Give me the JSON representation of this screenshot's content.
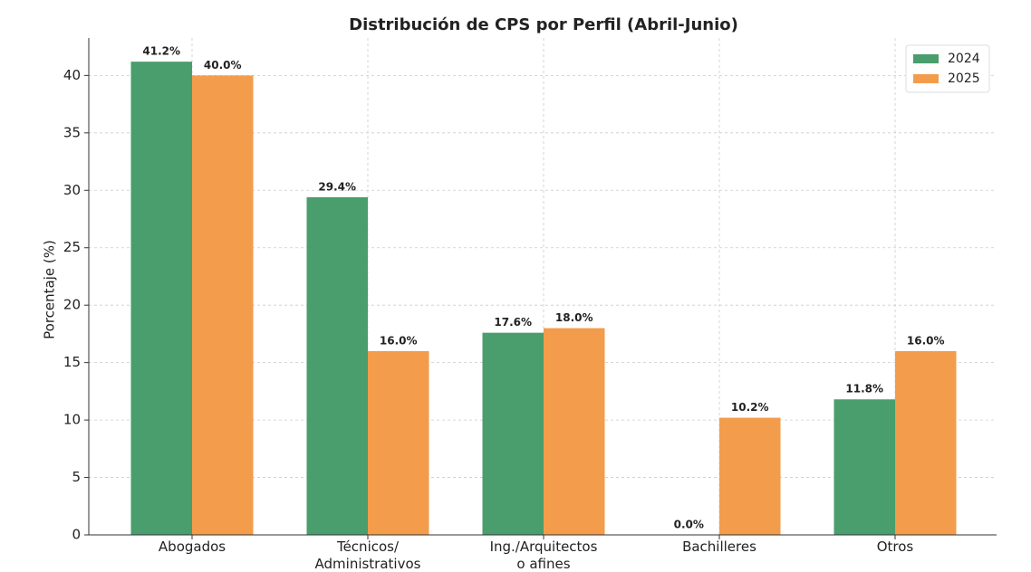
{
  "chart_data": {
    "type": "bar",
    "title": "Distribución de CPS por Perfil (Abril-Junio)",
    "y_label": "Porcentaje (%)",
    "categories": [
      "Abogados",
      "Técnicos/\nAdministrativos",
      "Ing./Arquitectos\no afines",
      "Bachilleres",
      "Otros"
    ],
    "series": [
      {
        "name": "2024",
        "color": "#4a9d6c",
        "values": [
          41.2,
          29.4,
          17.6,
          0.0,
          11.8
        ],
        "value_labels": [
          "41.2%",
          "29.4%",
          "17.6%",
          "0.0%",
          "11.8%"
        ]
      },
      {
        "name": "2025",
        "color": "#f39c4b",
        "values": [
          40.0,
          16.0,
          18.0,
          10.2,
          16.0
        ],
        "value_labels": [
          "40.0%",
          "16.0%",
          "18.0%",
          "10.2%",
          "16.0%"
        ]
      }
    ],
    "ylim": [
      0,
      43.26
    ],
    "yticks": [
      0,
      5,
      10,
      15,
      20,
      25,
      30,
      35,
      40
    ],
    "grid": true,
    "legend": "upper right"
  }
}
